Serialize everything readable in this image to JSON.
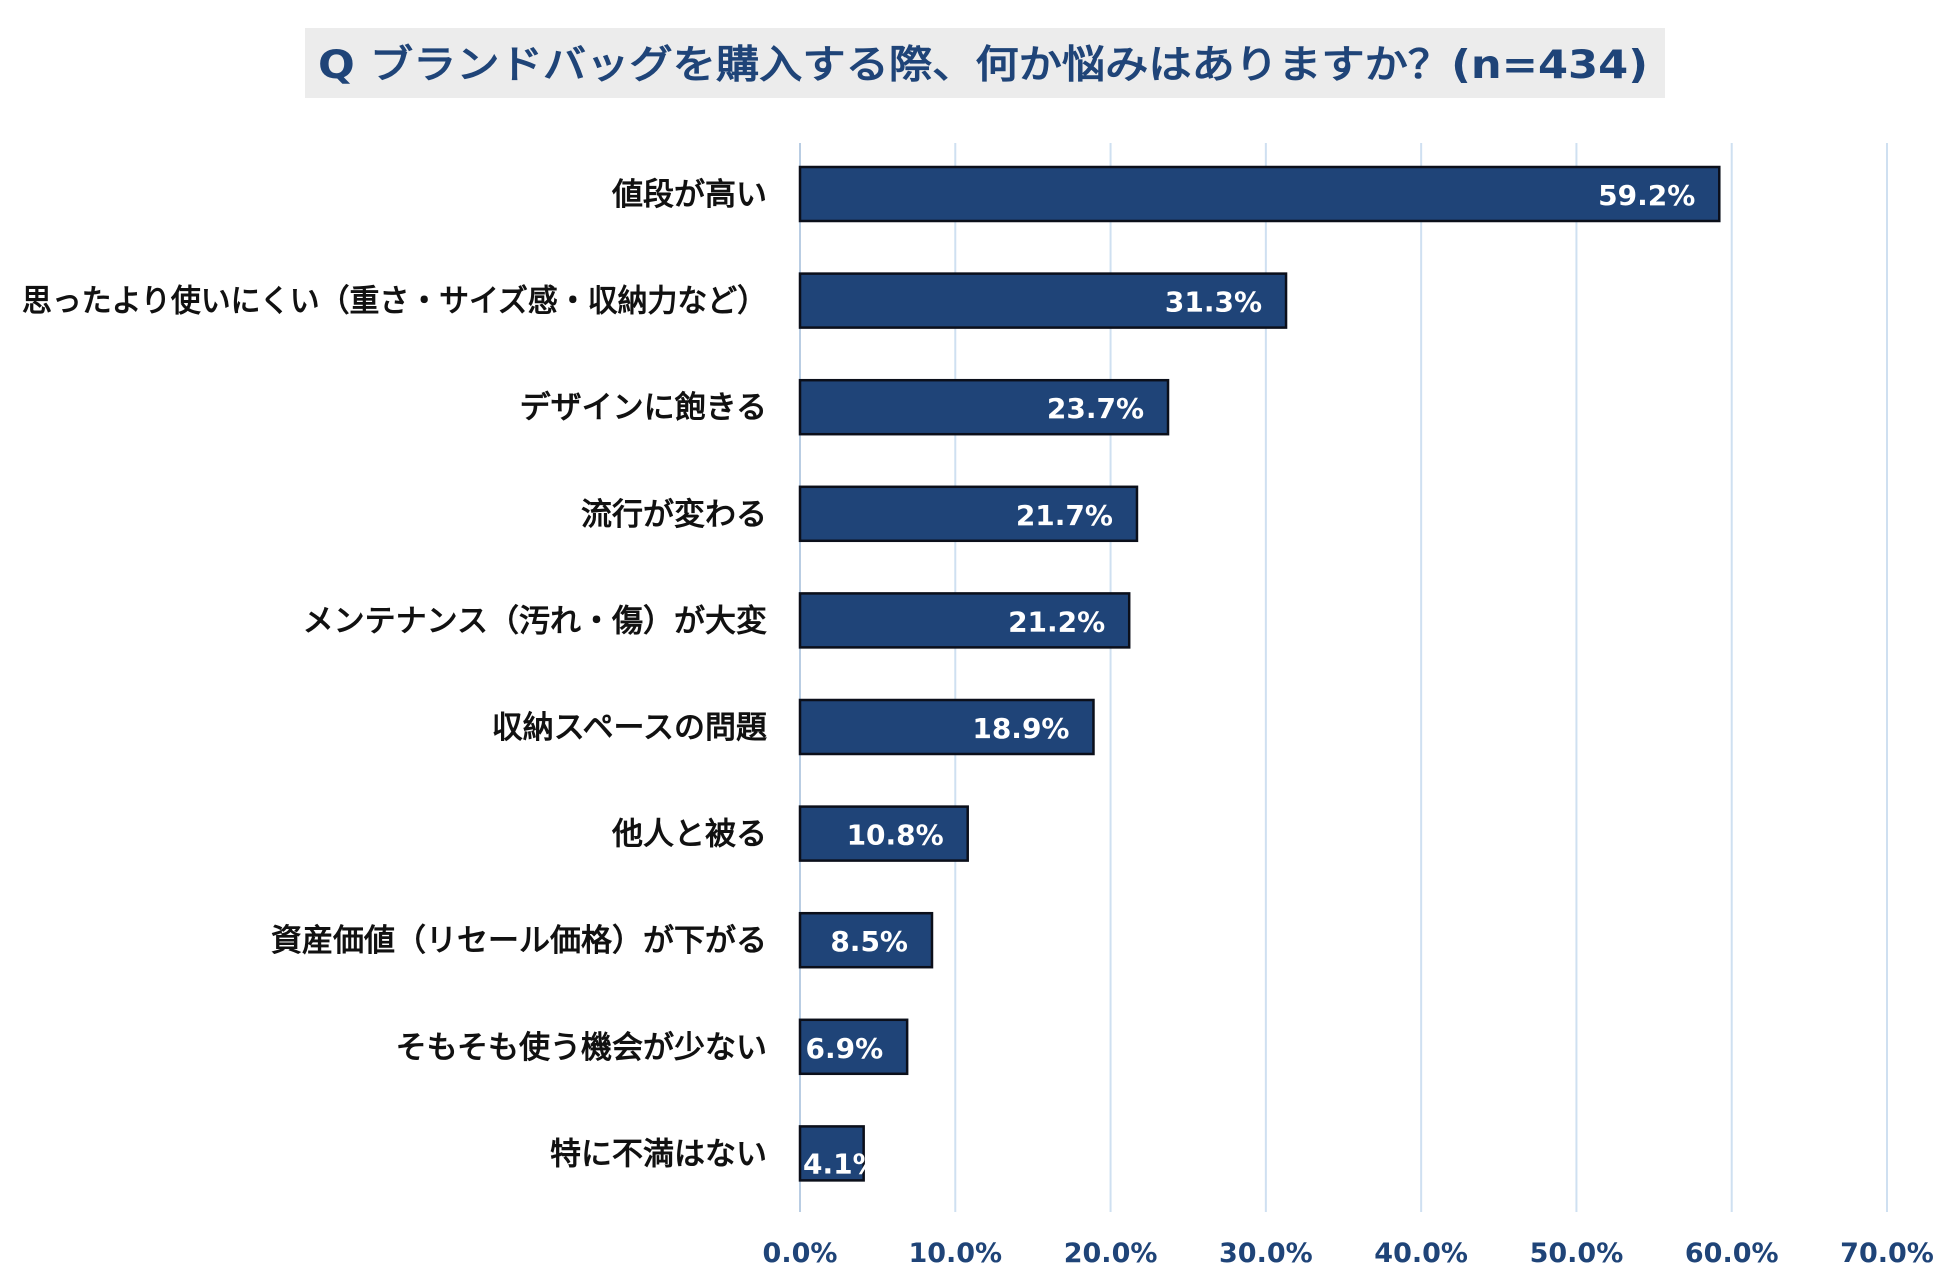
{
  "chart_data": {
    "type": "bar",
    "orientation": "horizontal",
    "title": "Q ブランドバッグを購入する際、何か悩みはありますか？(n=434)",
    "categories": [
      "値段が高い",
      "思ったより使いにくい（重さ・サイズ感・収納力など）",
      "デザインに飽きる",
      "流行が変わる",
      "メンテナンス（汚れ・傷）が大変",
      "収納スペースの問題",
      "他人と被る",
      "資産価値（リセール価格）が下がる",
      "そもそも使う機会が少ない",
      "特に不満はない"
    ],
    "values": [
      59.2,
      31.3,
      23.7,
      21.7,
      21.2,
      18.9,
      10.8,
      8.5,
      6.9,
      4.1
    ],
    "value_labels": [
      "59.2%",
      "31.3%",
      "23.7%",
      "21.7%",
      "21.2%",
      "18.9%",
      "10.8%",
      "8.5%",
      "6.9%",
      "4.1%"
    ],
    "xlim": [
      0,
      70
    ],
    "ticks": [
      0,
      10,
      20,
      30,
      40,
      50,
      60,
      70
    ],
    "tick_labels": [
      "0.0%",
      "10.0%",
      "20.0%",
      "30.0%",
      "40.0%",
      "50.0%",
      "60.0%",
      "70.0%"
    ],
    "xlabel": "",
    "ylabel": "",
    "grid": true,
    "colors": {
      "bar": "#1f4478",
      "title": "#1f4478",
      "grid": "#cfe0f1"
    }
  }
}
